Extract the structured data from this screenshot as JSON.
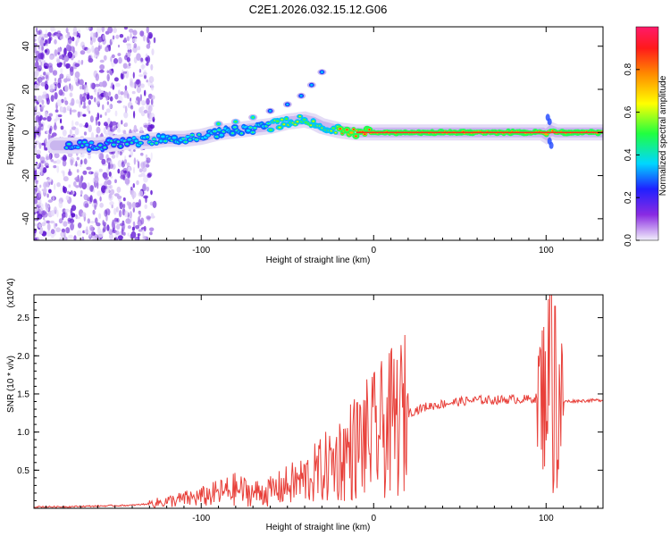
{
  "chart_data": [
    {
      "type": "heatmap",
      "title": "C2E1.2026.032.15.12.G06",
      "xlabel": "Height of straight line (km)",
      "ylabel": "Frequency (Hz)",
      "xlim": [
        -197,
        133
      ],
      "ylim": [
        -50,
        49
      ],
      "xticks": [
        -100,
        0,
        100
      ],
      "yticks": [
        -40,
        -20,
        0,
        20,
        40
      ],
      "colorbar": {
        "label": "Normalized spectral amplitude",
        "range": [
          0,
          1
        ],
        "ticks": [
          "0.0",
          "0.2",
          "0.4",
          "0.6",
          "0.8"
        ]
      },
      "ridge": {
        "x": [
          -175,
          -160,
          -150,
          -140,
          -130,
          -120,
          -110,
          -100,
          -90,
          -80,
          -70,
          -60,
          -50,
          -40,
          -35,
          -30,
          -20,
          -10,
          0,
          10,
          50,
          98,
          100,
          103,
          106,
          133
        ],
        "y": [
          -6,
          -6,
          -5,
          -4,
          -4,
          -3,
          -3,
          -2,
          0,
          1,
          2,
          3,
          5,
          6,
          5,
          3,
          1,
          0,
          0,
          0,
          0,
          0,
          -1,
          1,
          0,
          0
        ]
      },
      "branch": {
        "x": [
          -90,
          -80,
          -70,
          -60,
          -50,
          -42,
          -36,
          -30
        ],
        "y": [
          4,
          5,
          7,
          10,
          13,
          17,
          22,
          28
        ]
      }
    },
    {
      "type": "line",
      "xlabel": "Height of straight line (km)",
      "ylabel": "SNR (10 * v/v)",
      "y_scale_label": "(x10^4)",
      "xlim": [
        -197,
        133
      ],
      "ylim": [
        0,
        2.8
      ],
      "xticks": [
        -100,
        0,
        100
      ],
      "yticks": [
        0.5,
        1.0,
        1.5,
        2.0,
        2.5
      ],
      "series": [
        {
          "name": "SNR",
          "color": "#e8403a",
          "x": [
            -197,
            -180,
            -160,
            -140,
            -130,
            -120,
            -110,
            -100,
            -90,
            -80,
            -70,
            -60,
            -50,
            -40,
            -30,
            -20,
            -10,
            0,
            10,
            20,
            30,
            40,
            50,
            60,
            70,
            80,
            90,
            95,
            98,
            100,
            102,
            104,
            106,
            108,
            110,
            120,
            133
          ],
          "y": [
            0.02,
            0.02,
            0.03,
            0.04,
            0.06,
            0.09,
            0.12,
            0.15,
            0.2,
            0.25,
            0.2,
            0.22,
            0.3,
            0.38,
            0.5,
            0.65,
            0.82,
            0.95,
            1.1,
            1.25,
            1.33,
            1.37,
            1.4,
            1.42,
            1.42,
            1.43,
            1.43,
            1.45,
            1.5,
            1.6,
            1.9,
            1.3,
            0.9,
            1.2,
            1.4,
            1.41,
            1.42
          ]
        }
      ]
    }
  ]
}
